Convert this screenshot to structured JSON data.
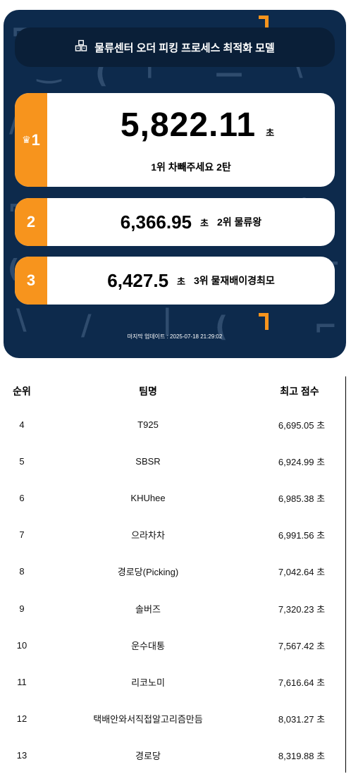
{
  "header": {
    "title": "물류센터 오더 피킹 프로세스 최적화 모델",
    "icon": "boxes-icon"
  },
  "podium": [
    {
      "rank": "1",
      "score": "5,822.11",
      "unit": "초",
      "team": "1위 차빼주세요 2탄"
    },
    {
      "rank": "2",
      "score": "6,366.95",
      "unit": "초",
      "team": "2위 물류왕"
    },
    {
      "rank": "3",
      "score": "6,427.5",
      "unit": "초",
      "team": "3위 물재배이경최모"
    }
  ],
  "updated": "마지막 업데이트 : 2025-07-18 21:29:02",
  "table": {
    "headers": {
      "rank": "순위",
      "team": "팀명",
      "score": "최고 점수"
    },
    "rows": [
      {
        "rank": "4",
        "team": "T925",
        "score": "6,695.05 초"
      },
      {
        "rank": "5",
        "team": "SBSR",
        "score": "6,924.99 초"
      },
      {
        "rank": "6",
        "team": "KHUhee",
        "score": "6,985.38 초"
      },
      {
        "rank": "7",
        "team": "으라차차",
        "score": "6,991.56 초"
      },
      {
        "rank": "8",
        "team": "경로당(Picking)",
        "score": "7,042.64 초"
      },
      {
        "rank": "9",
        "team": "솔버즈",
        "score": "7,320.23 초"
      },
      {
        "rank": "10",
        "team": "운수대통",
        "score": "7,567.42 초"
      },
      {
        "rank": "11",
        "team": "리코노미",
        "score": "7,616.64 초"
      },
      {
        "rank": "12",
        "team": "택배안와서직접알고리즘만듬",
        "score": "8,031.27 초"
      },
      {
        "rank": "13",
        "team": "경로당",
        "score": "8,319.88 초"
      }
    ]
  },
  "colors": {
    "background": "#0d2a4c",
    "accent": "#f7941d",
    "card": "#ffffff"
  }
}
